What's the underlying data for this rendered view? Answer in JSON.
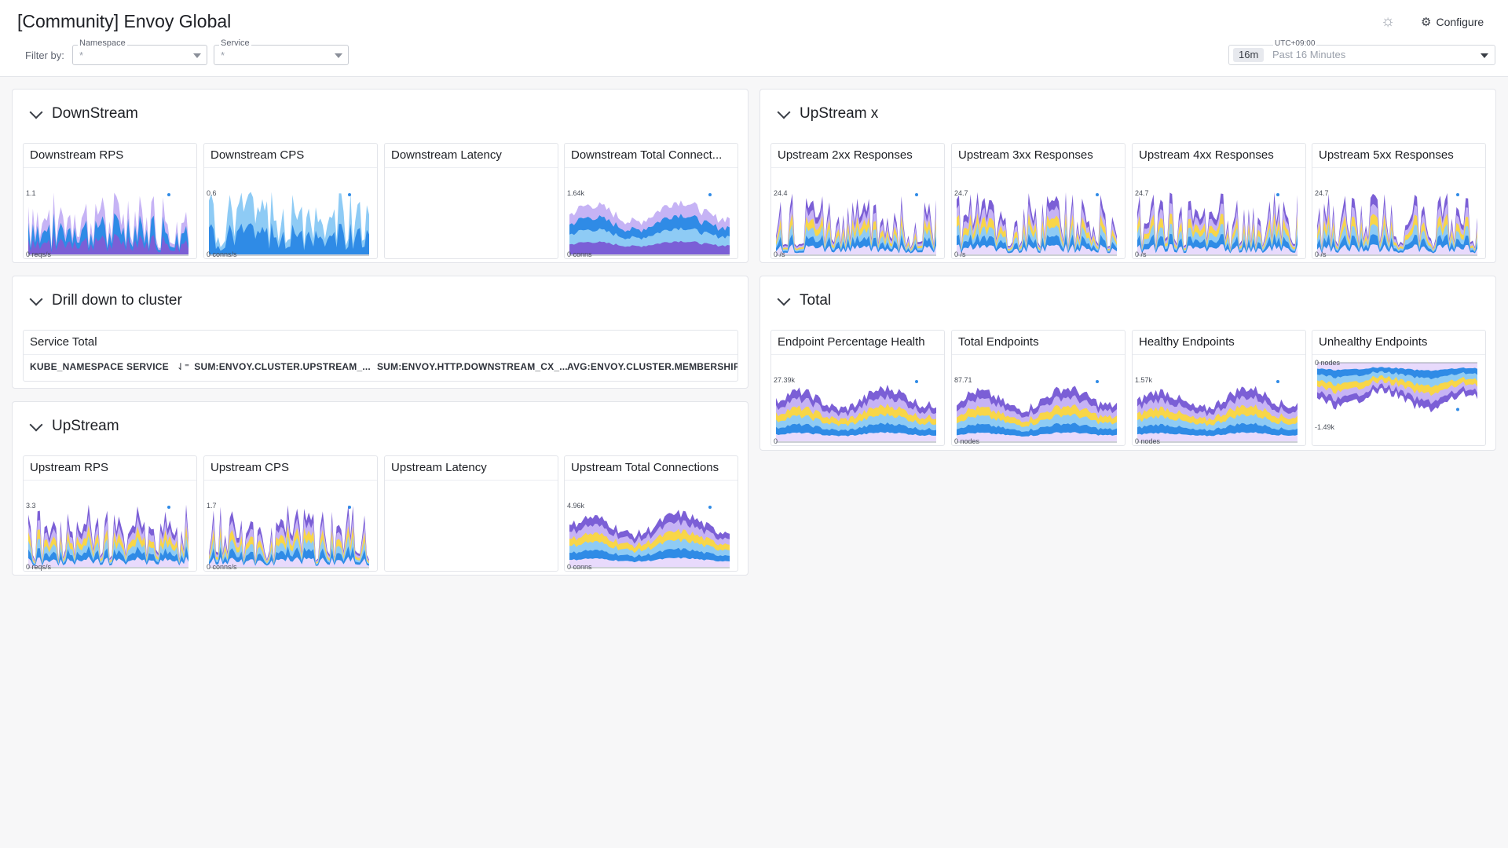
{
  "page": {
    "title": "[Community] Envoy Global",
    "filter_label": "Filter by:",
    "filters": [
      {
        "label": "Namespace",
        "value": "*"
      },
      {
        "label": "Service",
        "value": "*"
      }
    ],
    "configure_label": "Configure",
    "icons": {
      "theme": "sun-settings-icon",
      "configure": "gear-icon"
    },
    "time": {
      "timezone": "UTC+09:00",
      "badge": "16m",
      "range": "Past 16 Minutes"
    }
  },
  "colors": {
    "purple": "#7b5fd6",
    "lavender": "#c6b3f5",
    "blue": "#2f8be6",
    "lightblue": "#8ecbf5",
    "yellow": "#f8d648",
    "pale": "#e8dafc"
  },
  "groups": {
    "downstream": {
      "title": "DownStream",
      "widgets": [
        {
          "title": "Downstream RPS",
          "top": "1.1",
          "bottom": "0 reqs/s"
        },
        {
          "title": "Downstream CPS",
          "top": "0.6",
          "bottom": "0 conns/s"
        },
        {
          "title": "Downstream Latency",
          "top": "",
          "bottom": ""
        },
        {
          "title": "Downstream Total Connect...",
          "top": "1.64k",
          "bottom": "0 conns"
        }
      ]
    },
    "upstream_x": {
      "title": "UpStream x",
      "widgets": [
        {
          "title": "Upstream 2xx Responses",
          "top": "24.4",
          "bottom": "0 /s"
        },
        {
          "title": "Upstream 3xx Responses",
          "top": "24.7",
          "bottom": "0 /s"
        },
        {
          "title": "Upstream 4xx Responses",
          "top": "24.7",
          "bottom": "0 /s"
        },
        {
          "title": "Upstream 5xx Responses",
          "top": "24.7",
          "bottom": "0 /s"
        }
      ]
    },
    "drill": {
      "title": "Drill down to cluster",
      "table": {
        "title": "Service Total",
        "columns": [
          "KUBE_NAMESPACE",
          "SERVICE",
          "SUM:ENVOY.CLUSTER.UPSTREAM_...",
          "SUM:ENVOY.HTTP.DOWNSTREAM_CX_...",
          "AVG:ENVOY.CLUSTER.MEMBERSHIP_H..."
        ]
      }
    },
    "total": {
      "title": "Total",
      "widgets": [
        {
          "title": "Endpoint Percentage Health",
          "top": "27.39k",
          "bottom": "0"
        },
        {
          "title": "Total Endpoints",
          "top": "87.71",
          "bottom": "0 nodes"
        },
        {
          "title": "Healthy Endpoints",
          "top": "1.57k",
          "bottom": "0 nodes"
        },
        {
          "title": "Unhealthy Endpoints",
          "top": "0 nodes",
          "bottom": "-1.49k"
        }
      ]
    },
    "upstream": {
      "title": "UpStream",
      "widgets": [
        {
          "title": "Upstream RPS",
          "top": "3.3",
          "bottom": "0 reqs/s"
        },
        {
          "title": "Upstream CPS",
          "top": "1.7",
          "bottom": "0 conns/s"
        },
        {
          "title": "Upstream Latency",
          "top": "",
          "bottom": ""
        },
        {
          "title": "Upstream Total Connections",
          "top": "4.96k",
          "bottom": "0 conns"
        }
      ]
    }
  }
}
